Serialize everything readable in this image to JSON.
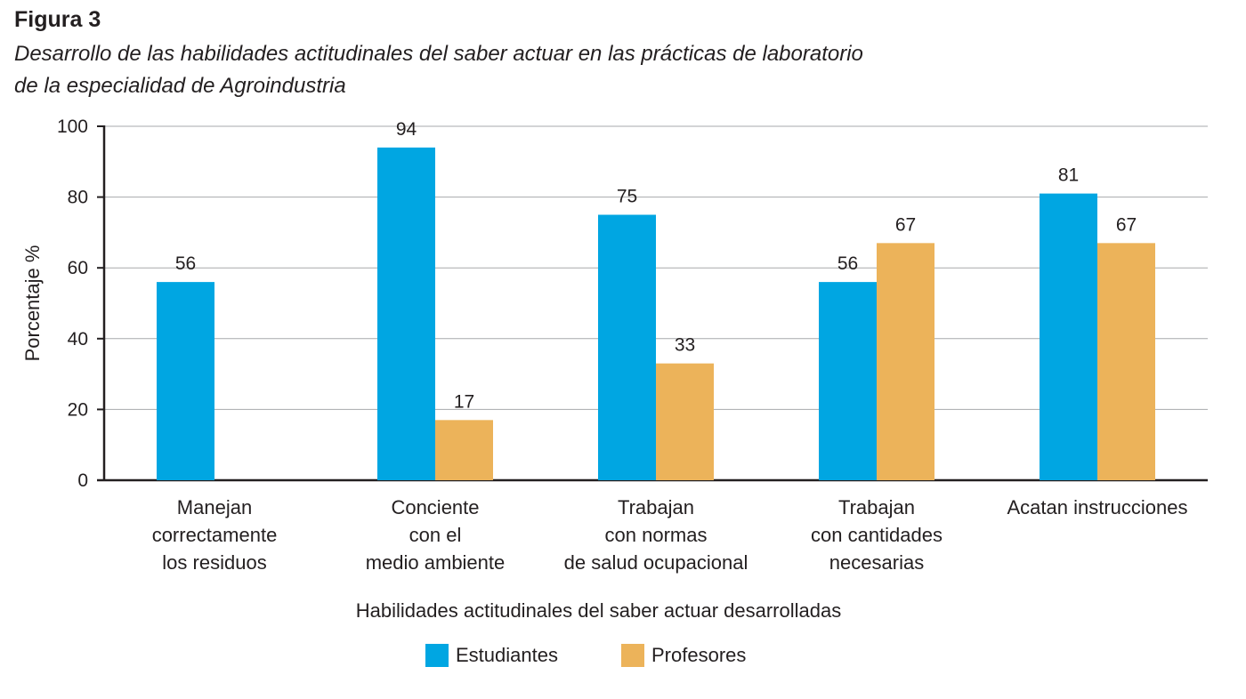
{
  "figure": {
    "label": "Figura 3",
    "title_lines": [
      "Desarrollo de las habilidades actitudinales del saber actuar en las prácticas de laboratorio",
      " de la especialidad de Agroindustria"
    ]
  },
  "colors": {
    "estudiantes": "#00a6e2",
    "profesores": "#ecb35a",
    "grid": "#a7a9ac",
    "axis": "#231f20"
  },
  "chart_data": {
    "type": "bar",
    "title": "Desarrollo de las habilidades actitudinales del saber actuar en las prácticas de laboratorio de la especialidad de Agroindustria",
    "categories": [
      [
        "Manejan",
        "correctamente",
        "los residuos"
      ],
      [
        "Conciente",
        "con el",
        "medio ambiente"
      ],
      [
        "Trabajan",
        "con normas",
        "de salud ocupacional"
      ],
      [
        "Trabajan",
        "con cantidades",
        "necesarias"
      ],
      [
        "Acatan instrucciones"
      ]
    ],
    "series": [
      {
        "name": "Estudiantes",
        "values": [
          56,
          94,
          75,
          56,
          81
        ]
      },
      {
        "name": "Profesores",
        "values": [
          null,
          17,
          33,
          67,
          67
        ]
      }
    ],
    "xlabel": "Habilidades actitudinales del saber actuar desarrolladas",
    "ylabel": "Porcentaje %",
    "ylim": [
      0,
      100
    ],
    "yticks": [
      0,
      20,
      40,
      60,
      80,
      100
    ],
    "grid": true,
    "legend_position": "bottom-center"
  }
}
